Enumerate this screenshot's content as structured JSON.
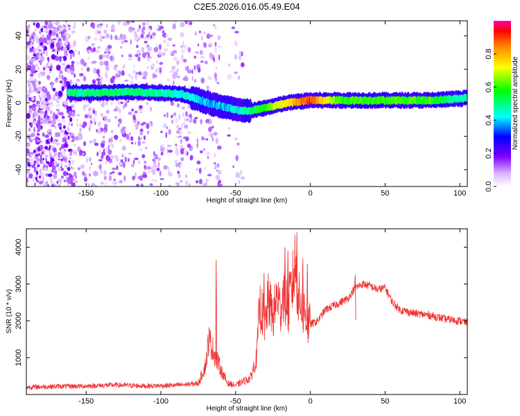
{
  "title": "C2E5.2026.016.05.49.E04",
  "chart_data": [
    {
      "type": "heatmap",
      "name": "spectrogram",
      "xlabel": "Height of straight line (km)",
      "ylabel": "Frequency (Hz)",
      "xlim": [
        -190,
        105
      ],
      "ylim": [
        -50,
        49
      ],
      "xticks": [
        -150,
        -100,
        -50,
        0,
        50,
        100
      ],
      "yticks": [
        -40,
        -20,
        0,
        20,
        40
      ],
      "colorbar": {
        "label": "Normalized spectral amplitude",
        "range": [
          0,
          1
        ],
        "ticks": [
          "0.0",
          "0.2",
          "0.4",
          "0.6",
          "0.8"
        ],
        "tick_values": [
          0.0,
          0.2,
          0.4,
          0.6,
          0.8
        ]
      },
      "ridge": {
        "x": [
          -160,
          -140,
          -120,
          -100,
          -85,
          -75,
          -65,
          -55,
          -45,
          -35,
          -25,
          -15,
          -5,
          0,
          20,
          50,
          80,
          100,
          105
        ],
        "frequency": [
          6,
          6,
          6.5,
          6,
          5,
          2,
          -1,
          -3,
          -5,
          -4,
          -2,
          0,
          1,
          1.5,
          1.5,
          1.5,
          1.5,
          2.5,
          3
        ],
        "amplitude": [
          0.5,
          0.52,
          0.5,
          0.48,
          0.45,
          0.4,
          0.38,
          0.4,
          0.45,
          0.55,
          0.65,
          0.75,
          0.85,
          0.9,
          0.6,
          0.6,
          0.6,
          0.45,
          0.45
        ]
      },
      "noise_region_x": [
        -190,
        -80
      ]
    },
    {
      "type": "line",
      "name": "snr",
      "xlabel": "Height of straight line (km)",
      "ylabel": "SNR (10 * v/v)",
      "xlim": [
        -190,
        105
      ],
      "ylim": [
        0,
        4500
      ],
      "xticks": [
        -150,
        -100,
        -50,
        0,
        50,
        100
      ],
      "yticks": [
        1000,
        2000,
        3000,
        4000
      ],
      "color": "#ee3333",
      "series": [
        {
          "name": "SNR",
          "x": [
            -190,
            -170,
            -150,
            -130,
            -110,
            -90,
            -75,
            -70,
            -68,
            -65,
            -62,
            -58,
            -55,
            -50,
            -45,
            -40,
            -36,
            -34,
            -30,
            -28,
            -25,
            -22,
            -20,
            -18,
            -15,
            -12,
            -10,
            -8,
            -5,
            -2,
            0,
            5,
            10,
            15,
            20,
            25,
            30,
            35,
            40,
            45,
            50,
            55,
            60,
            70,
            80,
            90,
            100,
            105
          ],
          "values": [
            200,
            220,
            230,
            260,
            230,
            250,
            300,
            800,
            1500,
            1200,
            900,
            500,
            300,
            250,
            350,
            450,
            1000,
            2400,
            2000,
            2600,
            2100,
            2700,
            2300,
            2800,
            2400,
            3000,
            3600,
            2600,
            2400,
            2000,
            1900,
            2000,
            2300,
            2400,
            2500,
            2600,
            2900,
            3000,
            2950,
            2850,
            2900,
            2500,
            2300,
            2200,
            2150,
            2050,
            2000,
            1950
          ],
          "spikes": [
            {
              "x": -63,
              "value": 3650
            },
            {
              "x": -31,
              "value": 3300
            },
            {
              "x": -17,
              "value": 4000
            },
            {
              "x": -15,
              "value": 3900
            },
            {
              "x": -9,
              "value": 4400
            },
            {
              "x": -5,
              "value": 3700
            },
            {
              "x": -2,
              "value": 3550
            },
            {
              "x": 30,
              "value": 3250
            }
          ]
        }
      ]
    }
  ]
}
